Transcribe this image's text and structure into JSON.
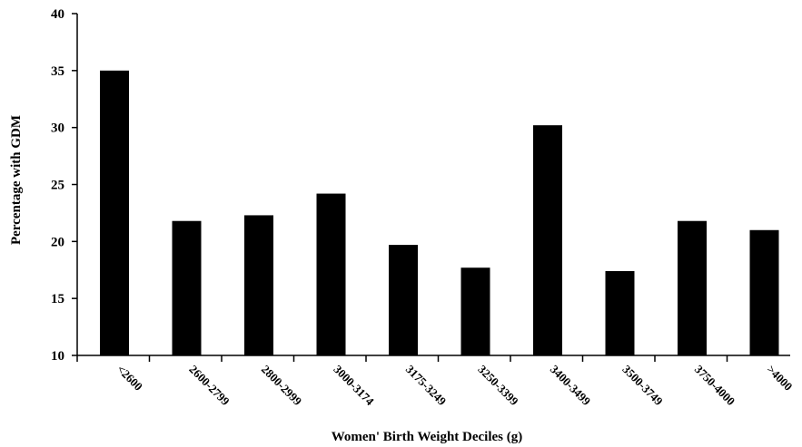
{
  "chart_data": {
    "type": "bar",
    "title": "",
    "xlabel": "Women' Birth Weight Deciles  (g)",
    "ylabel": "Percentage with GDM",
    "categories": [
      "<2600",
      "2600-2799",
      "2800-2999",
      "3000-3174",
      "3175-3249",
      "3250-3399",
      "3400-3499",
      "3500-3749",
      "3750-4000",
      ">4000"
    ],
    "values": [
      35.0,
      21.8,
      22.3,
      24.2,
      19.7,
      17.7,
      30.2,
      17.4,
      21.8,
      21.0
    ],
    "ylim": [
      10,
      40
    ],
    "yticks": [
      "10",
      "15",
      "20",
      "25",
      "30",
      "35",
      "40"
    ],
    "grid": false,
    "legend": "none",
    "bar_color": "#000000"
  }
}
